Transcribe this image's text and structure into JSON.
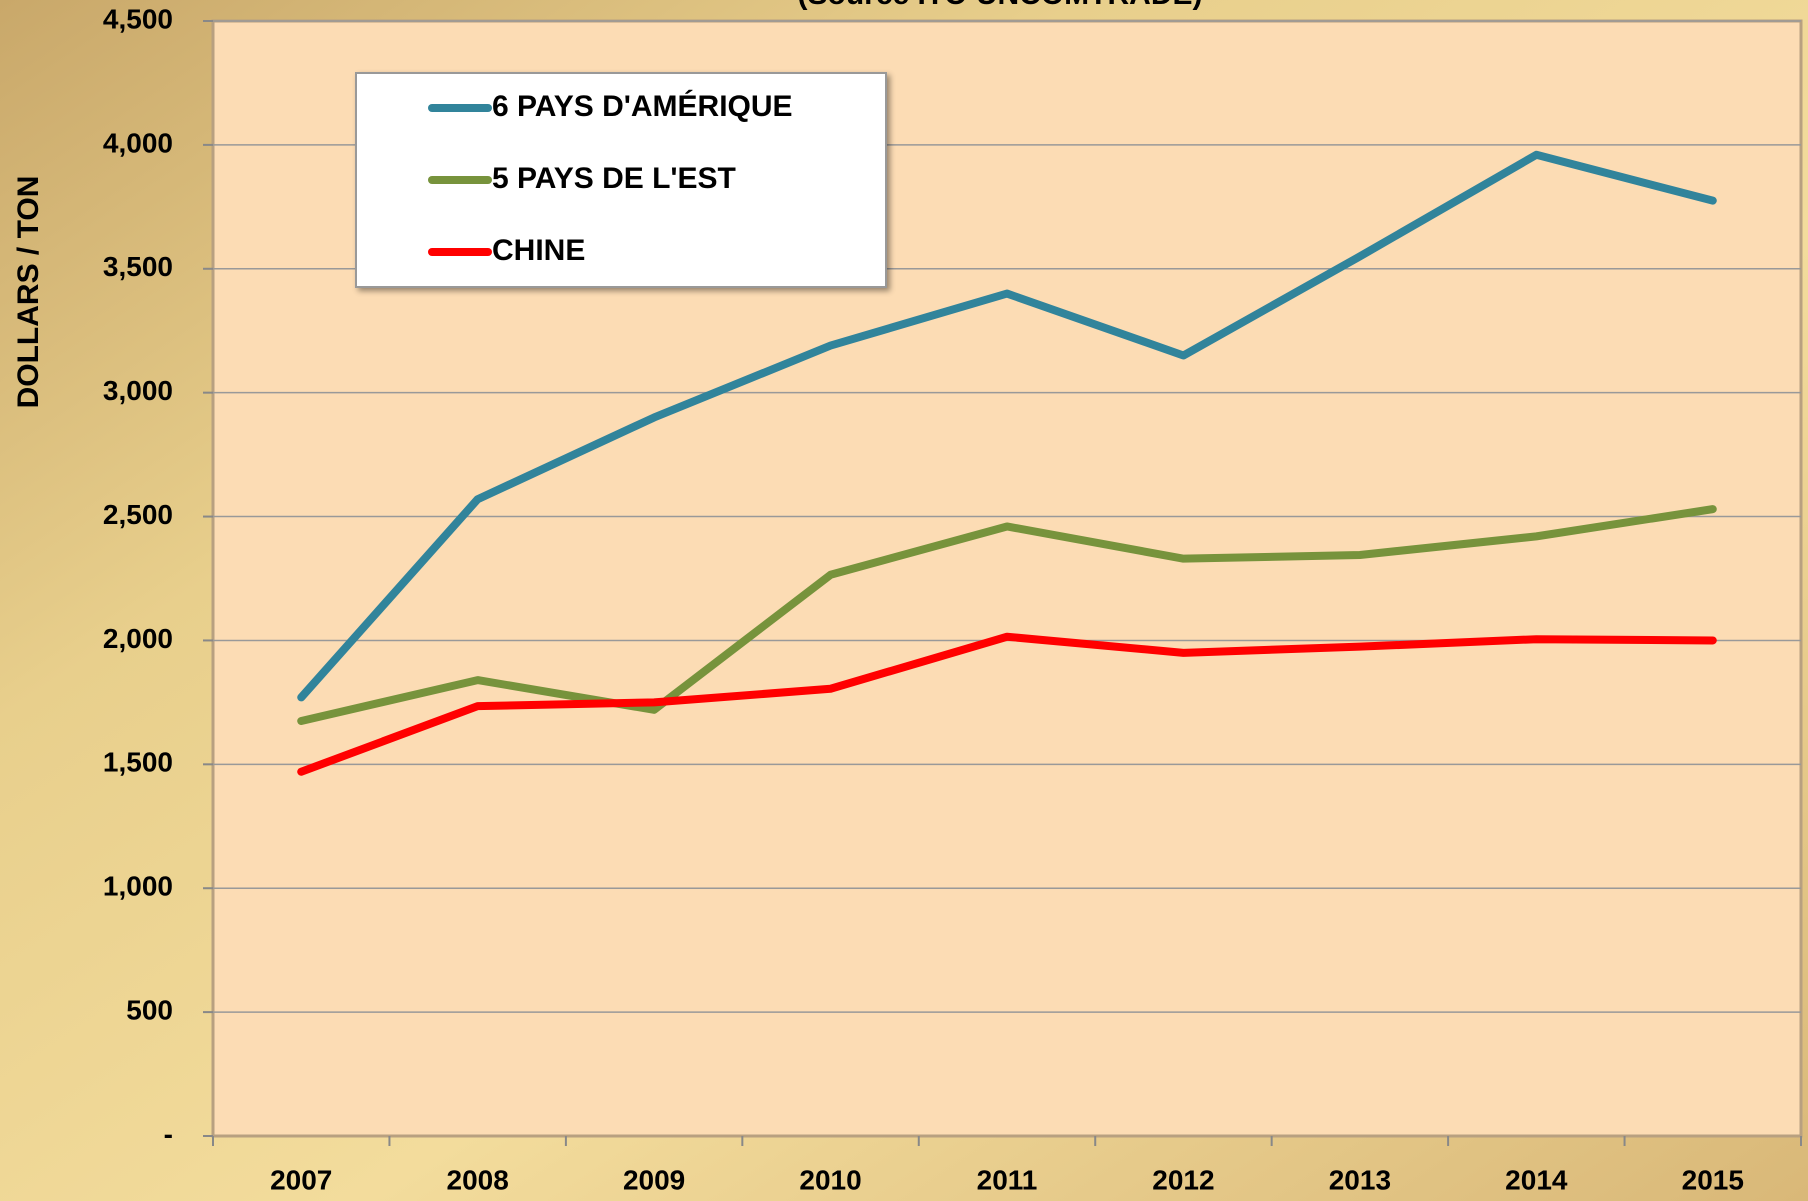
{
  "chart_data": {
    "type": "line",
    "subtitle": "(Source ITC-UNCOMTRADE)",
    "y_label": "DOLLARS / TON",
    "categories": [
      "2007",
      "2008",
      "2009",
      "2010",
      "2011",
      "2012",
      "2013",
      "2014",
      "2015"
    ],
    "series": [
      {
        "name": "6 PAYS D'AMÉRIQUE",
        "color": "#31849b",
        "values": [
          1770,
          2570,
          2900,
          3190,
          3400,
          3150,
          3550,
          3960,
          3775
        ]
      },
      {
        "name": "5 PAYS DE L'EST",
        "color": "#77933c",
        "values": [
          1675,
          1840,
          1720,
          2265,
          2460,
          2330,
          2345,
          2420,
          2530
        ]
      },
      {
        "name": "CHINE",
        "color": "#ff0000",
        "values": [
          1470,
          1735,
          1750,
          1805,
          2015,
          1950,
          1975,
          2005,
          2000
        ]
      }
    ],
    "ylim": [
      0,
      4500
    ],
    "yticks": [
      {
        "value": 0,
        "label": "-"
      },
      500,
      {
        "value": 1000,
        "label": "1,000"
      },
      {
        "value": 1500,
        "label": "1,500"
      },
      {
        "value": 2000,
        "label": "2,000"
      },
      {
        "value": 2500,
        "label": "2,500"
      },
      {
        "value": 3000,
        "label": "3,000"
      },
      {
        "value": 3500,
        "label": "3,500"
      },
      {
        "value": 4000,
        "label": "4,000"
      },
      {
        "value": 4500,
        "label": "4,500"
      }
    ],
    "grid": true,
    "legend": "upper left"
  }
}
